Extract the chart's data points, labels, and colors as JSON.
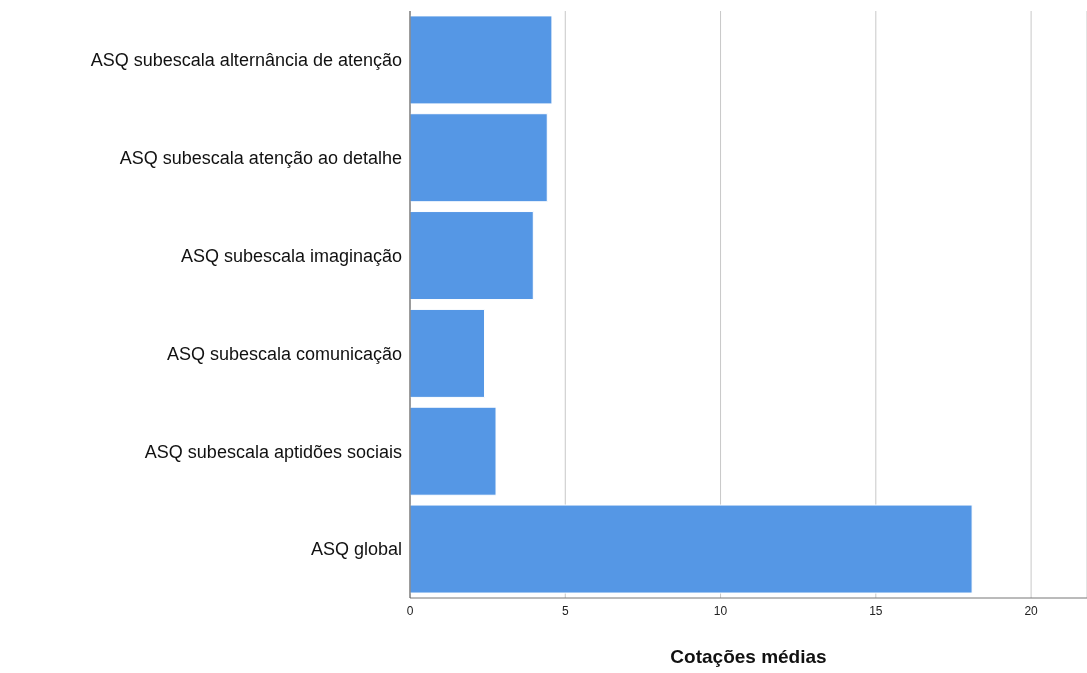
{
  "chart_data": {
    "type": "bar",
    "orientation": "horizontal",
    "xlabel": "Cotações médias",
    "categories": [
      "ASQ subescala alternância de atenção",
      "ASQ subescala atenção ao detalhe",
      "ASQ subescala imaginação",
      "ASQ subescala comunicação",
      "ASQ subescala aptidões sociais",
      "ASQ global"
    ],
    "values": [
      4.57,
      4.42,
      3.97,
      2.4,
      2.77,
      18.1
    ],
    "color": "#5597e5",
    "xlim": [
      0,
      21.8
    ],
    "xticks": [
      0,
      5,
      10,
      15,
      20
    ],
    "grid": "x"
  }
}
